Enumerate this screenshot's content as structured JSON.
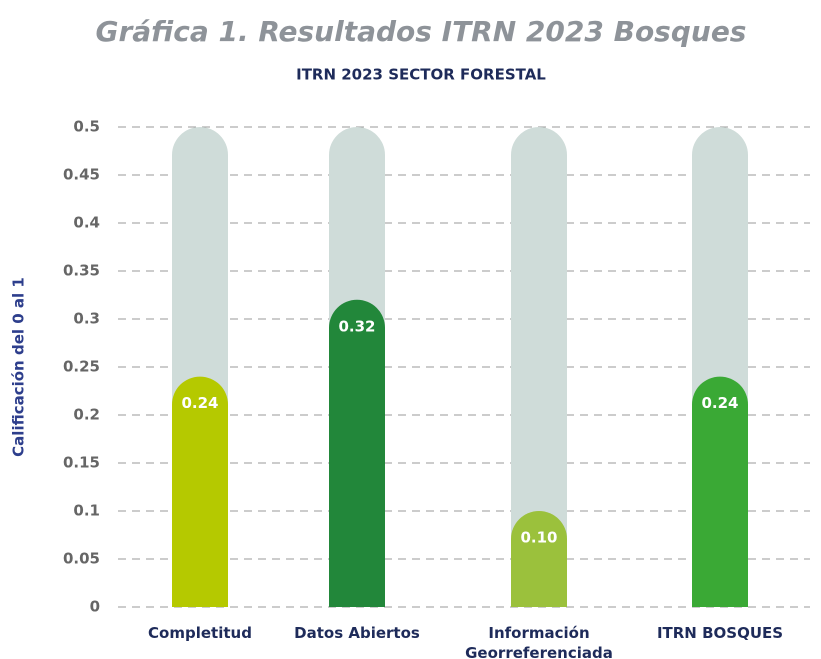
{
  "chart_data": {
    "type": "bar",
    "title": "Gráfica 1. Resultados ITRN 2023 Bosques",
    "subtitle": "ITRN 2023 SECTOR FORESTAL",
    "y_label": "Calificación del 0 al 1",
    "categories": [
      "Completitud",
      "Datos Abiertos",
      "Información Georreferenciada",
      "ITRN BOSQUES"
    ],
    "values": [
      0.24,
      0.32,
      0.1,
      0.24
    ],
    "value_labels": [
      "0.24",
      "0.32",
      "0.10",
      "0.24"
    ],
    "colors": [
      "#b5c900",
      "#22873a",
      "#9bc13c",
      "#3aa935"
    ],
    "track_color": "#cfdcd9",
    "ylim": [
      0,
      0.5
    ],
    "yticks": [
      0,
      0.05,
      0.1,
      0.15,
      0.2,
      0.25,
      0.3,
      0.35,
      0.4,
      0.45,
      0.5
    ],
    "grid": true
  }
}
